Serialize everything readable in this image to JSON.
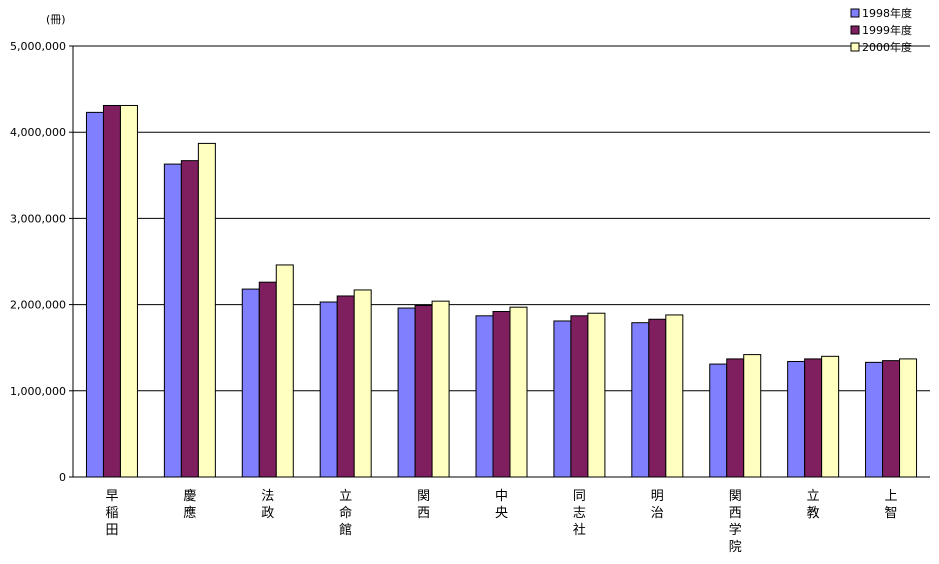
{
  "chart_data": {
    "type": "bar",
    "unit_label": "(冊)",
    "categories": [
      "早稲田",
      "慶應",
      "法政",
      "立命館",
      "関西",
      "中央",
      "同志社",
      "明治",
      "関西学院",
      "立教",
      "上智"
    ],
    "series": [
      {
        "name": "1998年度",
        "color": "#8080ff",
        "values": [
          4230000,
          3630000,
          2180000,
          2030000,
          1960000,
          1870000,
          1810000,
          1790000,
          1310000,
          1340000,
          1330000
        ]
      },
      {
        "name": "1999年度",
        "color": "#7f1f5f",
        "values": [
          4310000,
          3670000,
          2260000,
          2100000,
          1990000,
          1920000,
          1870000,
          1830000,
          1370000,
          1370000,
          1350000
        ]
      },
      {
        "name": "2000年度",
        "color": "#ffffc0",
        "values": [
          4310000,
          3870000,
          2460000,
          2170000,
          2040000,
          1970000,
          1900000,
          1880000,
          1420000,
          1400000,
          1370000
        ]
      }
    ],
    "yticks": [
      "0",
      "1,000,000",
      "2,000,000",
      "3,000,000",
      "4,000,000",
      "5,000,000"
    ],
    "ylim": [
      0,
      5000000
    ],
    "grid": true,
    "legend": "top-right"
  }
}
